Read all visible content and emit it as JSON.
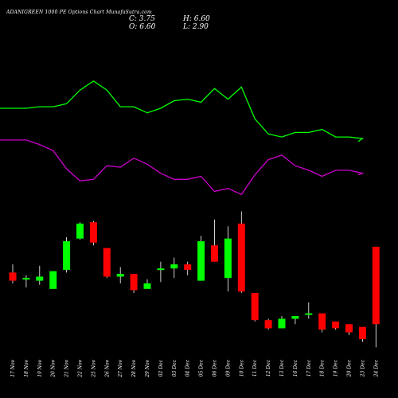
{
  "header": {
    "title": "ADANIGREEN  1000  PE Options  Chart MunafaSutra.com",
    "c_text": "C: 3.75",
    "o_text": "O: 6.60",
    "h_text": "H: 6.60",
    "l_text": "L: 2.90"
  },
  "colors": {
    "background": "#000000",
    "up": "#00ff00",
    "down": "#ff0000",
    "wick": "#ffffff",
    "line_upper": "#00ff00",
    "line_lower": "#cc00cc"
  },
  "chart_data": {
    "type": "candlestick",
    "categories": [
      "17 Nov",
      "18 Nov",
      "19 Nov",
      "20 Nov",
      "21 Nov",
      "22 Nov",
      "25 Nov",
      "26 Nov",
      "27 Nov",
      "28 Nov",
      "29 Nov",
      "02 Dec",
      "03 Dec",
      "04 Dec",
      "05 Dec",
      "06 Dec",
      "09 Dec",
      "10 Dec",
      "11 Dec",
      "12 Dec",
      "13 Dec",
      "16 Dec",
      "17 Dec",
      "18 Dec",
      "19 Dec",
      "20 Dec",
      "23 Dec",
      "24 Dec"
    ],
    "ohlc": [
      {
        "o": 5.65,
        "h": 5.95,
        "l": 5.25,
        "c": 5.35
      },
      {
        "o": 5.4,
        "h": 5.55,
        "l": 5.1,
        "c": 5.45
      },
      {
        "o": 5.35,
        "h": 5.9,
        "l": 5.2,
        "c": 5.5
      },
      {
        "o": 5.05,
        "h": 5.7,
        "l": 5.05,
        "c": 5.7
      },
      {
        "o": 5.75,
        "h": 6.95,
        "l": 5.65,
        "c": 6.8
      },
      {
        "o": 6.9,
        "h": 7.5,
        "l": 6.85,
        "c": 7.45
      },
      {
        "o": 7.5,
        "h": 7.55,
        "l": 6.65,
        "c": 6.75
      },
      {
        "o": 6.55,
        "h": 6.55,
        "l": 5.45,
        "c": 5.5
      },
      {
        "o": 5.5,
        "h": 5.85,
        "l": 5.25,
        "c": 5.6
      },
      {
        "o": 5.6,
        "h": 5.6,
        "l": 4.9,
        "c": 5.0
      },
      {
        "o": 5.05,
        "h": 5.4,
        "l": 5.05,
        "c": 5.25
      },
      {
        "o": 5.75,
        "h": 6.05,
        "l": 5.3,
        "c": 5.8
      },
      {
        "o": 5.8,
        "h": 6.2,
        "l": 5.45,
        "c": 5.95
      },
      {
        "o": 5.95,
        "h": 6.05,
        "l": 5.55,
        "c": 5.75
      },
      {
        "o": 5.35,
        "h": 7.0,
        "l": 5.35,
        "c": 6.8
      },
      {
        "o": 6.65,
        "h": 7.6,
        "l": 6.05,
        "c": 6.05
      },
      {
        "o": 5.45,
        "h": 7.35,
        "l": 4.95,
        "c": 6.9
      },
      {
        "o": 7.45,
        "h": 7.9,
        "l": 4.9,
        "c": 4.95
      },
      {
        "o": 4.9,
        "h": 4.9,
        "l": 3.85,
        "c": 3.9
      },
      {
        "o": 3.9,
        "h": 3.95,
        "l": 3.55,
        "c": 3.6
      },
      {
        "o": 3.6,
        "h": 4.05,
        "l": 3.6,
        "c": 3.95
      },
      {
        "o": 3.95,
        "h": 4.05,
        "l": 3.75,
        "c": 4.05
      },
      {
        "o": 4.15,
        "h": 4.55,
        "l": 3.95,
        "c": 4.15
      },
      {
        "o": 4.15,
        "h": 4.15,
        "l": 3.45,
        "c": 3.55
      },
      {
        "o": 3.85,
        "h": 3.85,
        "l": 3.55,
        "c": 3.6
      },
      {
        "o": 3.75,
        "h": 3.75,
        "l": 3.35,
        "c": 3.45
      },
      {
        "o": 3.65,
        "h": 3.65,
        "l": 3.1,
        "c": 3.2
      },
      {
        "o": 6.6,
        "h": 6.6,
        "l": 2.9,
        "c": 3.75
      }
    ],
    "indicator_upper": [
      60,
      60,
      61,
      61,
      63,
      72,
      78,
      72,
      61,
      61,
      57,
      60,
      65,
      66,
      64,
      73,
      66,
      74,
      53,
      43,
      41,
      44,
      44,
      46,
      41,
      41,
      40,
      38
    ],
    "indicator_lower": [
      39,
      39,
      36,
      32,
      20,
      12,
      13,
      22,
      21,
      27,
      23,
      17,
      13,
      13,
      15,
      5,
      7,
      3,
      16,
      26,
      29,
      22,
      19,
      15,
      19,
      19,
      17,
      16
    ],
    "indicator_range": [
      0,
      100
    ]
  }
}
